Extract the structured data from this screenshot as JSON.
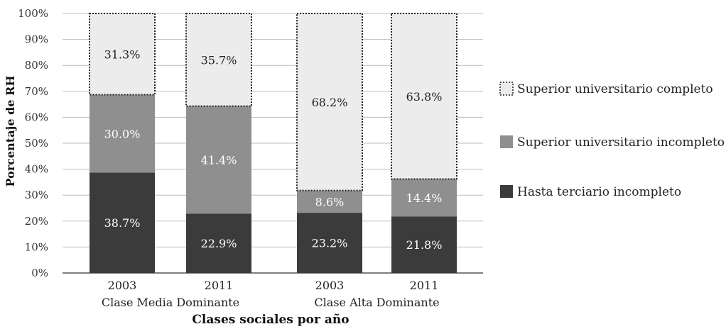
{
  "chart_data": {
    "type": "bar",
    "stacked": true,
    "ylabel": "Porcentaje de RH",
    "xlabel": "Clases sociales por año",
    "ylim": [
      0,
      100
    ],
    "y_ticks": [
      "0%",
      "10%",
      "20%",
      "30%",
      "40%",
      "50%",
      "60%",
      "70%",
      "80%",
      "90%",
      "100%"
    ],
    "grid": true,
    "legend_position": "right",
    "categories": [
      "2003",
      "2011",
      "2003",
      "2011"
    ],
    "groups": [
      {
        "label": "Clase Media Dominante",
        "categories": [
          "2003",
          "2011"
        ]
      },
      {
        "label": "Clase Alta Dominante",
        "categories": [
          "2003",
          "2011"
        ]
      }
    ],
    "series": [
      {
        "name": "Hasta terciario incompleto",
        "values": [
          38.7,
          22.9,
          23.2,
          21.8
        ],
        "labels": [
          "38.7%",
          "22.9%",
          "23.2%",
          "21.8%"
        ],
        "color": "#3b3b3b",
        "label_color": "#ffffff"
      },
      {
        "name": "Superior universitario incompleto",
        "values": [
          30.0,
          41.4,
          8.6,
          14.4
        ],
        "labels": [
          "30.0%",
          "41.4%",
          "8.6%",
          "14.4%"
        ],
        "color": "#8f8f8f",
        "label_color": "#ffffff"
      },
      {
        "name": "Superior universitario completo",
        "values": [
          31.3,
          35.7,
          68.2,
          63.8
        ],
        "labels": [
          "31.3%",
          "35.7%",
          "68.2%",
          "63.8%"
        ],
        "color": "#ececec",
        "label_color": "#222222",
        "dotted_border": true
      }
    ],
    "legend_order": [
      2,
      1,
      0
    ]
  }
}
